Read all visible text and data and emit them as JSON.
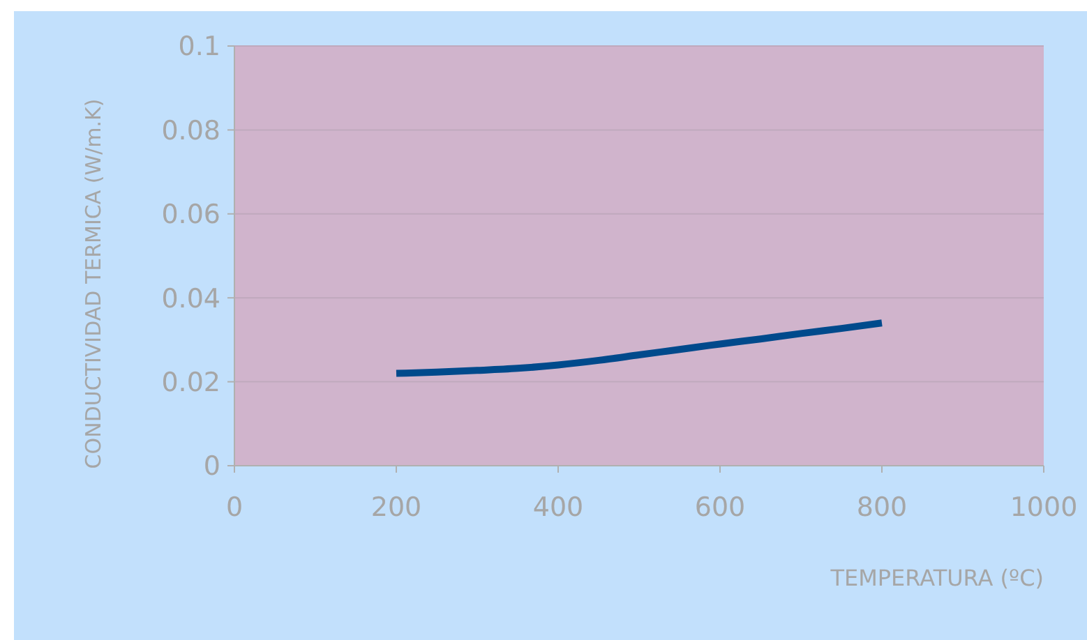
{
  "chart_data": {
    "type": "line",
    "xlabel": "TEMPERATURA (ºC)",
    "ylabel": "CONDUCTIVIDAD TERMICA (W/m.K)",
    "x": [
      200,
      250,
      300,
      350,
      400,
      450,
      500,
      550,
      600,
      650,
      700,
      750,
      800
    ],
    "series": [
      {
        "color": "#004a8c",
        "values": [
          0.022,
          0.0223,
          0.0227,
          0.0232,
          0.024,
          0.0251,
          0.0264,
          0.0277,
          0.029,
          0.0302,
          0.0315,
          0.0327,
          0.034
        ]
      }
    ],
    "xlim": [
      0,
      1000
    ],
    "xticks": [
      0,
      200,
      400,
      600,
      800,
      1000
    ],
    "ylim": [
      0,
      0.1
    ],
    "yticks": [
      0,
      0.02,
      0.04,
      0.06,
      0.08,
      0.1
    ],
    "grid": "y",
    "marker": "none",
    "line_style": "solid"
  }
}
